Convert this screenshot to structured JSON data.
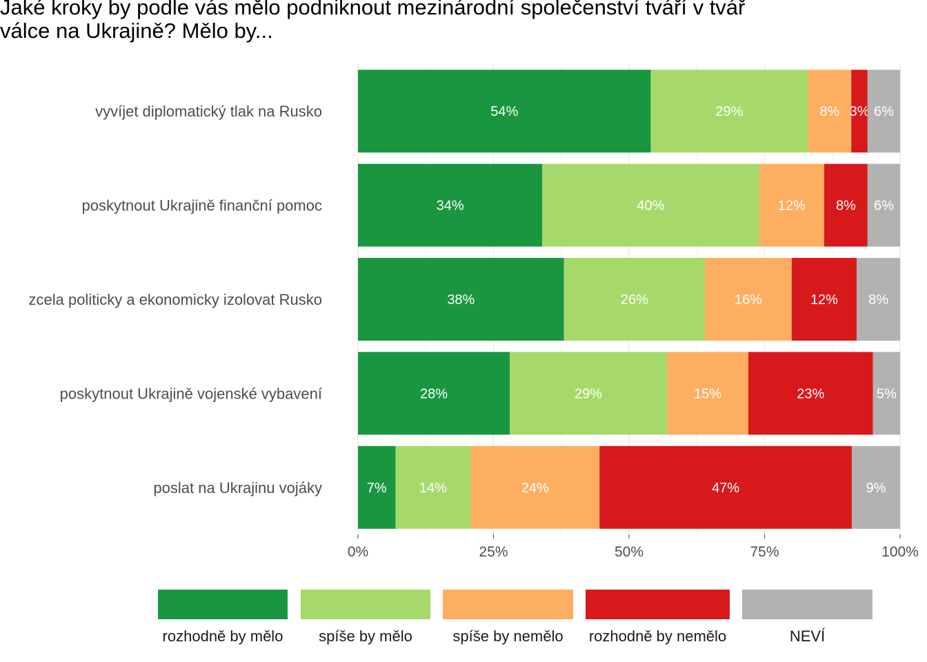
{
  "title": {
    "line1": "Jaké kroky by podle vás mělo podniknout mezinárodní společenství tváří v tvář",
    "line2": "válce na Ukrajině? Mělo by..."
  },
  "chart_data": {
    "type": "bar",
    "orientation": "horizontal",
    "stacked": true,
    "categories": [
      "vyvíjet diplomatický tlak na Rusko",
      "poskytnout Ukrajině finanční pomoc",
      "zcela politicky a ekonomicky izolovat Rusko",
      "poskytnout Ukrajině vojenské vybavení",
      "poslat na Ukrajinu vojáky"
    ],
    "series": [
      {
        "name": "rozhodně by mělo",
        "color": "#1a9641",
        "values": [
          54,
          34,
          38,
          28,
          7
        ],
        "labels": [
          "54%",
          "34%",
          "38%",
          "28%",
          "7%"
        ]
      },
      {
        "name": "spíše by mělo",
        "color": "#a6d96a",
        "values": [
          29,
          40,
          26,
          29,
          14
        ],
        "labels": [
          "29%",
          "40%",
          "26%",
          "29%",
          "14%"
        ]
      },
      {
        "name": "spíše by nemělo",
        "color": "#fdae61",
        "values": [
          8,
          12,
          16,
          15,
          24
        ],
        "labels": [
          "8%",
          "12%",
          "16%",
          "15%",
          "24%"
        ]
      },
      {
        "name": "rozhodně by nemělo",
        "color": "#d7191c",
        "values": [
          3,
          8,
          12,
          23,
          47
        ],
        "labels": [
          "3%",
          "8%",
          "12%",
          "23%",
          "47%"
        ]
      },
      {
        "name": "NEVÍ",
        "color": "#b2b2b2",
        "values": [
          6,
          6,
          8,
          5,
          9
        ],
        "labels": [
          "6%",
          "6%",
          "8%",
          "5%",
          "9%"
        ]
      }
    ],
    "xlim": [
      0,
      100
    ],
    "x_ticks": [
      0,
      25,
      50,
      75,
      100
    ],
    "x_tick_labels": [
      "0%",
      "25%",
      "50%",
      "75%",
      "100%"
    ],
    "xlabel": "",
    "ylabel": "",
    "grid": true,
    "legend_position": "bottom"
  }
}
